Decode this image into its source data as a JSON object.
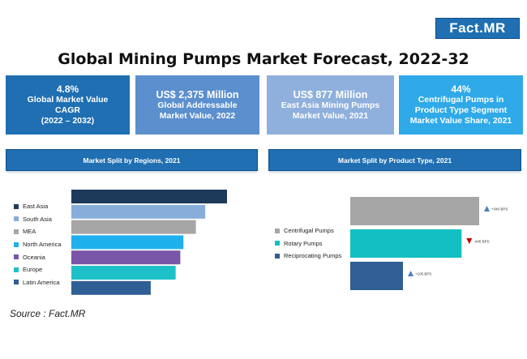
{
  "brand": "Fact.MR",
  "title": "Global Mining Pumps Market Forecast, 2022-32",
  "kpis": [
    {
      "value": "4.8%",
      "label": "Global Market Value CAGR",
      "label2": "(2022 – 2032)",
      "color": "#1f6fb2"
    },
    {
      "value": "US$ 2,375 Million",
      "label": "Global Addressable",
      "label2": "Market Value, 2022",
      "color": "#5b8fce"
    },
    {
      "value": "US$ 877 Million",
      "label": "East Asia Mining Pumps",
      "label2": "Market Value, 2021",
      "color": "#8fb0dc"
    },
    {
      "value": "44%",
      "label": "Centrifugal Pumps in Product Type Segment",
      "label2": "Market Value Share, 2021",
      "color": "#2fa9e8"
    }
  ],
  "source": "Source : Fact.MR",
  "chart_data": [
    {
      "type": "bar",
      "orientation": "horizontal",
      "title": "Market Split by Regions, 2021",
      "categories": [
        "East Asia",
        "South Asia",
        "MEA",
        "North America",
        "Oceania",
        "Europe",
        "Latin America"
      ],
      "values": [
        100,
        86,
        80,
        72,
        70,
        67,
        51
      ],
      "colors": [
        "#1e3a5a",
        "#87aedb",
        "#a6a6a6",
        "#1fb0ee",
        "#7a56a8",
        "#1dc0c8",
        "#2f5f94"
      ],
      "legend_position": "left"
    },
    {
      "type": "bar",
      "orientation": "horizontal",
      "title": "Market Split by Product Type, 2021",
      "categories": [
        "Centrifugal Pumps",
        "Rotary Pumps",
        "Reciprocating Pumps"
      ],
      "values": [
        44,
        38,
        18
      ],
      "colors": [
        "#a6a6a6",
        "#13bfc3",
        "#2f5f94"
      ],
      "bps_labels": [
        "+340 BPS",
        "-445 BPS",
        "+105 BPS"
      ],
      "bps_directions": [
        "up",
        "down",
        "up"
      ],
      "bps_colors": [
        "#4a7fc1",
        "#c00000",
        "#4a7fc1"
      ],
      "legend_position": "left"
    }
  ]
}
